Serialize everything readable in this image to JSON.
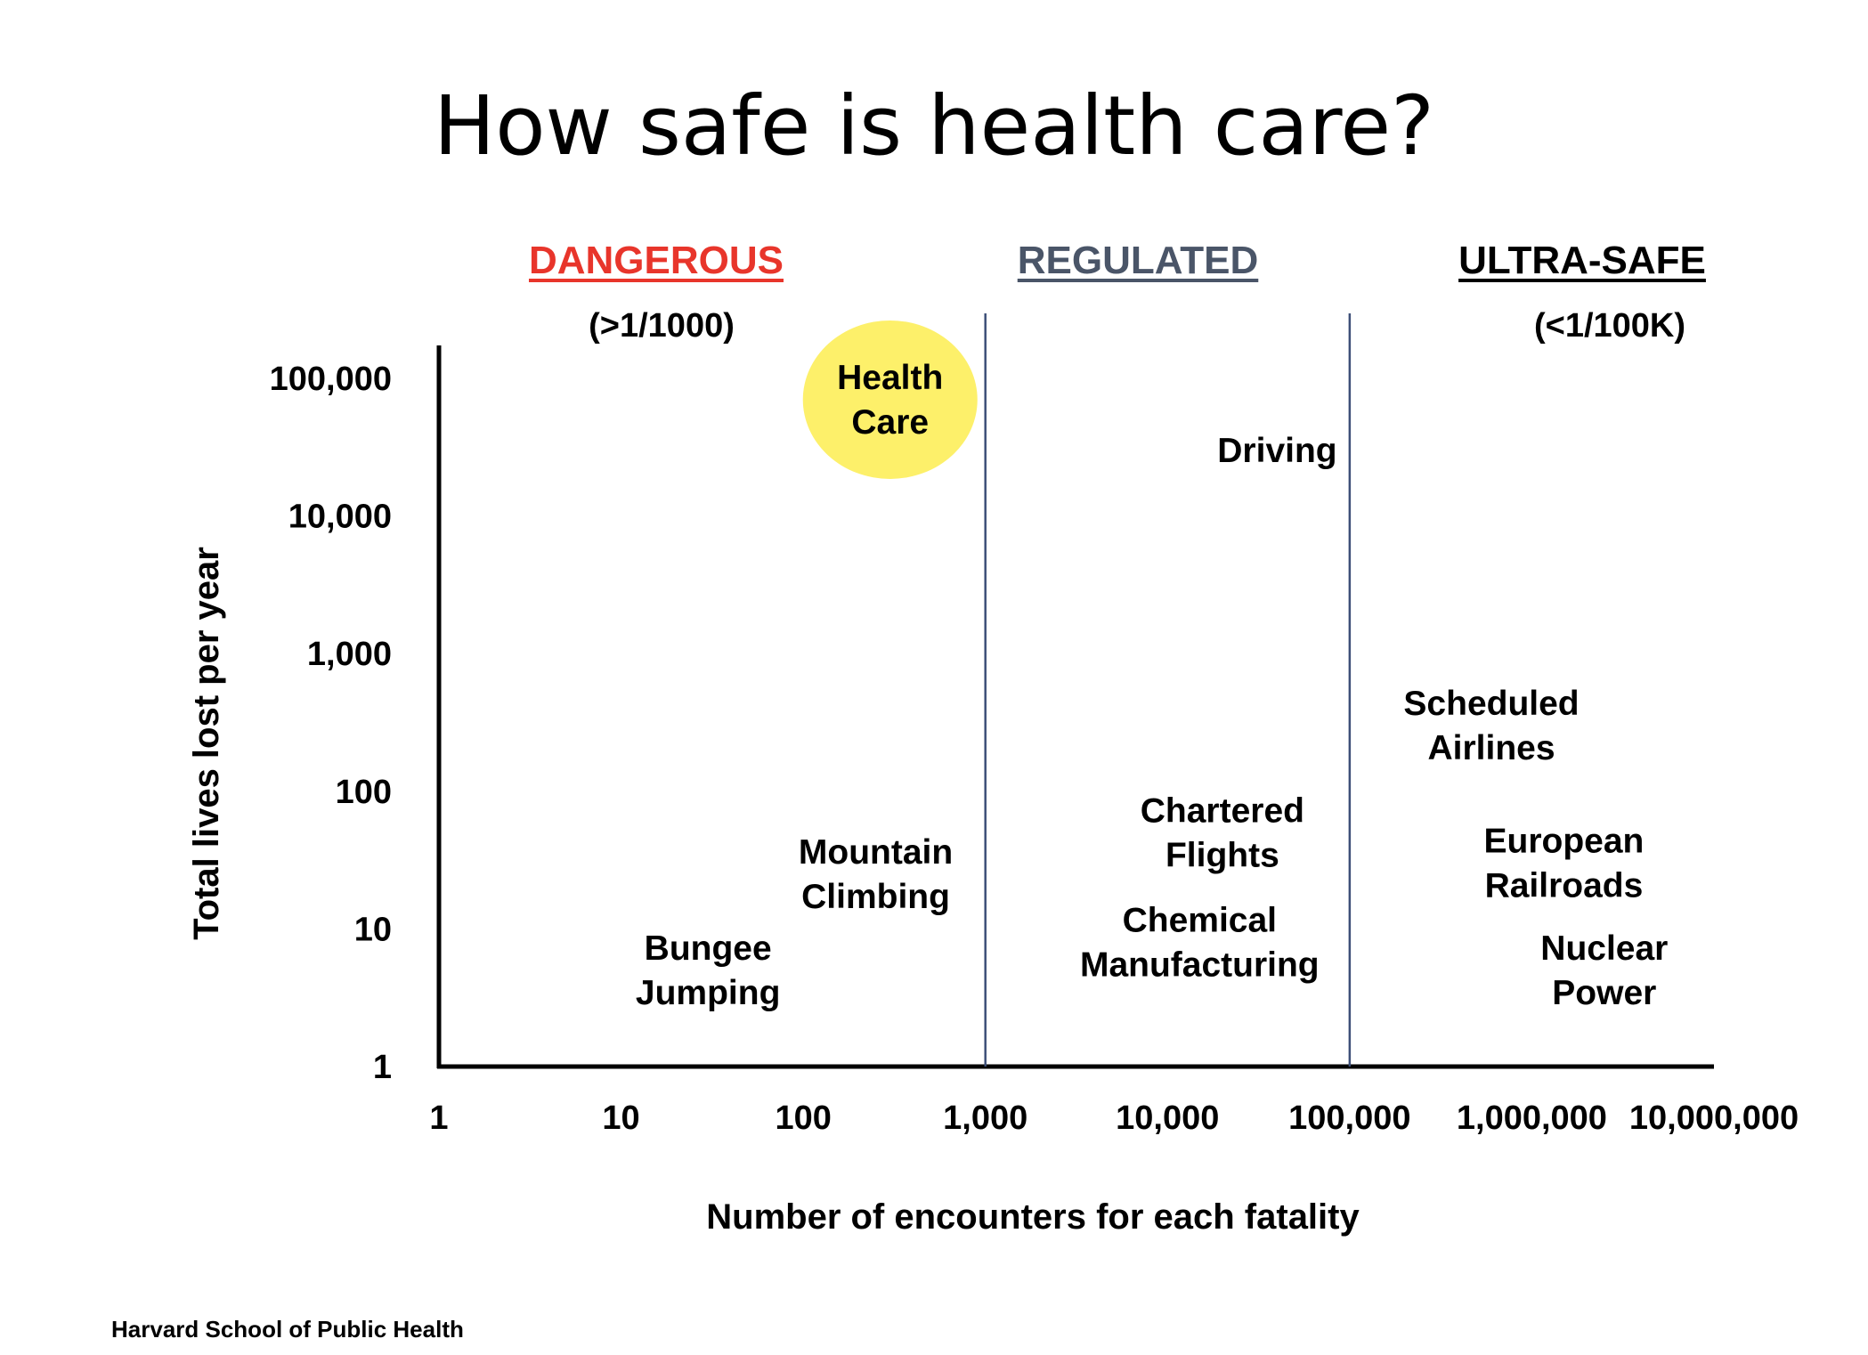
{
  "slide": {
    "title": "How safe is health care?",
    "footer": "Harvard School of Public Health"
  },
  "zones": [
    {
      "label": "DANGEROUS",
      "sublabel": "(>1/1000)",
      "color": "#e8352b"
    },
    {
      "label": "REGULATED",
      "sublabel": "",
      "color": "#4a5568"
    },
    {
      "label": "ULTRA-SAFE",
      "sublabel": "(<1/100K)",
      "color": "#000000"
    }
  ],
  "colors": {
    "highlight": "#fdf06a",
    "divider": "#3d4f78",
    "axis": "#000000"
  },
  "chart_data": {
    "type": "scatter",
    "title": "How safe is health care?",
    "xlabel": "Number of encounters for each fatality",
    "ylabel": "Total lives lost per year",
    "xscale": "log",
    "yscale": "log",
    "xlim": [
      1,
      10000000
    ],
    "ylim": [
      1,
      100000
    ],
    "x_ticks": [
      "1",
      "10",
      "100",
      "1,000",
      "10,000",
      "100,000",
      "1,000,000",
      "10,000,000"
    ],
    "y_ticks": [
      "1",
      "10",
      "100",
      "1,000",
      "10,000",
      "100,000"
    ],
    "zone_boundaries": [
      1000,
      100000
    ],
    "points": [
      {
        "label": [
          "Health",
          "Care"
        ],
        "x": 300,
        "y": 70000,
        "highlight": true
      },
      {
        "label": [
          "Driving"
        ],
        "x": 40000,
        "y": 30000
      },
      {
        "label": [
          "Scheduled",
          "Airlines"
        ],
        "x": 600000,
        "y": 300
      },
      {
        "label": [
          "Chartered",
          "Flights"
        ],
        "x": 20000,
        "y": 50
      },
      {
        "label": [
          "European",
          "Railroads"
        ],
        "x": 1500000,
        "y": 30
      },
      {
        "label": [
          "Mountain",
          "Climbing"
        ],
        "x": 250,
        "y": 25
      },
      {
        "label": [
          "Chemical",
          "Manufacturing"
        ],
        "x": 15000,
        "y": 8
      },
      {
        "label": [
          "Bungee",
          "Jumping"
        ],
        "x": 30,
        "y": 5
      },
      {
        "label": [
          "Nuclear",
          "Power"
        ],
        "x": 2500000,
        "y": 5
      }
    ]
  }
}
